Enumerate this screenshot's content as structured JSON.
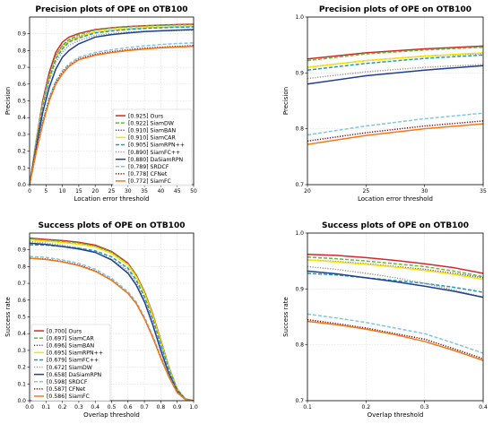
{
  "chart_data": [
    {
      "id": "precision-full",
      "type": "line",
      "title": "Precision plots of OPE on OTB100",
      "xlabel": "Location error threshold",
      "ylabel": "Precision",
      "xlim": [
        0,
        50
      ],
      "ylim": [
        0,
        1.0
      ],
      "xticks": [
        0,
        5,
        10,
        15,
        20,
        25,
        30,
        35,
        40,
        45,
        50
      ],
      "yticks": [
        0.0,
        0.1,
        0.2,
        0.3,
        0.4,
        0.5,
        0.6,
        0.7,
        0.8,
        0.9
      ],
      "ytick_labels": [
        "0.0",
        "0.1",
        "0.2",
        "0.3",
        "0.4",
        "0.5",
        "0.6",
        "0.7",
        "0.8",
        "0.9"
      ],
      "grid": true,
      "legend_position": "lower-right",
      "x": [
        0,
        2,
        4,
        6,
        8,
        10,
        12,
        15,
        20,
        25,
        30,
        35,
        40,
        45,
        50
      ],
      "series": [
        {
          "name": "[0.925] Ours",
          "color": "#d62728",
          "dash": "solid",
          "values": [
            0.0,
            0.26,
            0.5,
            0.67,
            0.79,
            0.85,
            0.88,
            0.902,
            0.925,
            0.936,
            0.943,
            0.948,
            0.952,
            0.955,
            0.957
          ]
        },
        {
          "name": "[0.922] SiamDW",
          "color": "#66bb33",
          "dash": "dashed",
          "values": [
            0.0,
            0.24,
            0.48,
            0.65,
            0.77,
            0.83,
            0.865,
            0.895,
            0.922,
            0.934,
            0.941,
            0.946,
            0.95,
            0.953,
            0.955
          ]
        },
        {
          "name": "[0.910] SiamBAN",
          "color": "#6a3d9a",
          "dash": "dotted",
          "values": [
            0.0,
            0.25,
            0.49,
            0.66,
            0.77,
            0.83,
            0.86,
            0.885,
            0.91,
            0.922,
            0.93,
            0.935,
            0.939,
            0.942,
            0.944
          ]
        },
        {
          "name": "[0.910] SiamCAR",
          "color": "#f2e600",
          "dash": "solid",
          "values": [
            0.0,
            0.25,
            0.48,
            0.64,
            0.76,
            0.82,
            0.855,
            0.88,
            0.91,
            0.922,
            0.93,
            0.936,
            0.94,
            0.943,
            0.945
          ]
        },
        {
          "name": "[0.905] SiamRPN++",
          "color": "#1f9bb5",
          "dash": "dashed",
          "values": [
            0.0,
            0.24,
            0.47,
            0.63,
            0.75,
            0.81,
            0.85,
            0.875,
            0.905,
            0.917,
            0.926,
            0.932,
            0.936,
            0.939,
            0.941
          ]
        },
        {
          "name": "[0.890] SiamFC++",
          "color": "#999999",
          "dash": "dotted",
          "values": [
            0.0,
            0.24,
            0.46,
            0.62,
            0.73,
            0.79,
            0.83,
            0.86,
            0.89,
            0.902,
            0.91,
            0.915,
            0.918,
            0.92,
            0.922
          ]
        },
        {
          "name": "[0.880] DaSiamRPN",
          "color": "#1f3f8f",
          "dash": "solid",
          "values": [
            0.0,
            0.22,
            0.43,
            0.58,
            0.69,
            0.76,
            0.8,
            0.84,
            0.88,
            0.895,
            0.905,
            0.913,
            0.918,
            0.922,
            0.925
          ]
        },
        {
          "name": "[0.789] SRDCF",
          "color": "#7fc6e0",
          "dash": "dashed",
          "values": [
            0.0,
            0.2,
            0.38,
            0.52,
            0.62,
            0.68,
            0.72,
            0.76,
            0.789,
            0.805,
            0.818,
            0.828,
            0.836,
            0.842,
            0.846
          ]
        },
        {
          "name": "[0.778] CFNet",
          "color": "#8b0000",
          "dash": "dotted",
          "values": [
            0.0,
            0.2,
            0.37,
            0.51,
            0.61,
            0.67,
            0.71,
            0.75,
            0.778,
            0.793,
            0.805,
            0.814,
            0.82,
            0.825,
            0.829
          ]
        },
        {
          "name": "[0.772] SiamFC",
          "color": "#f07a1a",
          "dash": "solid",
          "values": [
            0.0,
            0.19,
            0.36,
            0.5,
            0.6,
            0.66,
            0.705,
            0.745,
            0.772,
            0.788,
            0.8,
            0.809,
            0.816,
            0.821,
            0.825
          ]
        }
      ]
    },
    {
      "id": "precision-zoom",
      "type": "line",
      "title": "Precision plots of OPE on OTB100",
      "xlabel": "Location error threshold",
      "ylabel": "Precision",
      "xlim": [
        20,
        35
      ],
      "ylim": [
        0.7,
        1.0
      ],
      "xticks": [
        20,
        25,
        30,
        35
      ],
      "yticks": [
        0.7,
        0.8,
        0.9,
        1.0
      ],
      "ytick_labels": [
        "0.7",
        "0.8",
        "0.9",
        "1.0"
      ],
      "grid": true,
      "legend_position": "none",
      "x": [
        20,
        25,
        30,
        35
      ],
      "series": [
        {
          "name": "[0.925] Ours",
          "color": "#d62728",
          "dash": "solid",
          "values": [
            0.925,
            0.936,
            0.943,
            0.948
          ]
        },
        {
          "name": "[0.922] SiamDW",
          "color": "#66bb33",
          "dash": "dashed",
          "values": [
            0.922,
            0.934,
            0.941,
            0.946
          ]
        },
        {
          "name": "[0.910] SiamBAN",
          "color": "#6a3d9a",
          "dash": "dotted",
          "values": [
            0.91,
            0.922,
            0.93,
            0.935
          ]
        },
        {
          "name": "[0.910] SiamCAR",
          "color": "#f2e600",
          "dash": "solid",
          "values": [
            0.91,
            0.922,
            0.93,
            0.936
          ]
        },
        {
          "name": "[0.905] SiamRPN++",
          "color": "#1f9bb5",
          "dash": "dashed",
          "values": [
            0.905,
            0.917,
            0.926,
            0.932
          ]
        },
        {
          "name": "[0.890] SiamFC++",
          "color": "#999999",
          "dash": "dotted",
          "values": [
            0.89,
            0.902,
            0.91,
            0.915
          ]
        },
        {
          "name": "[0.880] DaSiamRPN",
          "color": "#1f3f8f",
          "dash": "solid",
          "values": [
            0.88,
            0.895,
            0.905,
            0.913
          ]
        },
        {
          "name": "[0.789] SRDCF",
          "color": "#7fc6e0",
          "dash": "dashed",
          "values": [
            0.789,
            0.805,
            0.818,
            0.828
          ]
        },
        {
          "name": "[0.778] CFNet",
          "color": "#8b0000",
          "dash": "dotted",
          "values": [
            0.778,
            0.793,
            0.805,
            0.814
          ]
        },
        {
          "name": "[0.772] SiamFC",
          "color": "#f07a1a",
          "dash": "solid",
          "values": [
            0.772,
            0.788,
            0.8,
            0.809
          ]
        }
      ]
    },
    {
      "id": "success-full",
      "type": "line",
      "title": "Success plots of OPE on OTB100",
      "xlabel": "Overlap threshold",
      "ylabel": "Success rate",
      "xlim": [
        0,
        1.0
      ],
      "ylim": [
        0,
        1.0
      ],
      "xticks": [
        0.0,
        0.1,
        0.2,
        0.3,
        0.4,
        0.5,
        0.6,
        0.7,
        0.8,
        0.9,
        1.0
      ],
      "xtick_labels": [
        "0.0",
        "0.1",
        "0.2",
        "0.3",
        "0.4",
        "0.5",
        "0.6",
        "0.7",
        "0.8",
        "0.9",
        "1.0"
      ],
      "yticks": [
        0.0,
        0.1,
        0.2,
        0.3,
        0.4,
        0.5,
        0.6,
        0.7,
        0.8,
        0.9
      ],
      "ytick_labels": [
        "0.0",
        "0.1",
        "0.2",
        "0.3",
        "0.4",
        "0.5",
        "0.6",
        "0.7",
        "0.8",
        "0.9"
      ],
      "grid": true,
      "legend_position": "lower-left",
      "x": [
        0.0,
        0.1,
        0.2,
        0.3,
        0.4,
        0.5,
        0.6,
        0.65,
        0.7,
        0.75,
        0.8,
        0.85,
        0.9,
        0.95,
        1.0
      ],
      "series": [
        {
          "name": "[0.700] Ours",
          "color": "#d62728",
          "dash": "solid",
          "values": [
            0.97,
            0.962,
            0.955,
            0.945,
            0.928,
            0.89,
            0.82,
            0.75,
            0.65,
            0.52,
            0.36,
            0.2,
            0.07,
            0.01,
            0.0
          ]
        },
        {
          "name": "[0.697] SiamCAR",
          "color": "#66bb33",
          "dash": "dashed",
          "values": [
            0.965,
            0.957,
            0.95,
            0.94,
            0.922,
            0.885,
            0.815,
            0.745,
            0.645,
            0.515,
            0.355,
            0.2,
            0.07,
            0.01,
            0.0
          ]
        },
        {
          "name": "[0.696] SiamBAN",
          "color": "#6a3d9a",
          "dash": "dotted",
          "values": [
            0.96,
            0.952,
            0.945,
            0.935,
            0.92,
            0.88,
            0.81,
            0.74,
            0.64,
            0.51,
            0.35,
            0.195,
            0.068,
            0.01,
            0.0
          ]
        },
        {
          "name": "[0.695] SiamRPN++",
          "color": "#f2e600",
          "dash": "solid",
          "values": [
            0.96,
            0.952,
            0.944,
            0.933,
            0.917,
            0.878,
            0.81,
            0.74,
            0.64,
            0.51,
            0.35,
            0.195,
            0.068,
            0.01,
            0.0
          ]
        },
        {
          "name": "[0.679] SiamFC++",
          "color": "#1f9bb5",
          "dash": "dashed",
          "values": [
            0.93,
            0.928,
            0.92,
            0.91,
            0.894,
            0.858,
            0.79,
            0.72,
            0.62,
            0.49,
            0.335,
            0.185,
            0.065,
            0.01,
            0.0
          ]
        },
        {
          "name": "[0.672] SiamDW",
          "color": "#999999",
          "dash": "dotted",
          "values": [
            0.95,
            0.94,
            0.928,
            0.91,
            0.885,
            0.845,
            0.775,
            0.705,
            0.605,
            0.475,
            0.32,
            0.175,
            0.06,
            0.008,
            0.0
          ]
        },
        {
          "name": "[0.658] DaSiamRPN",
          "color": "#1f3f8f",
          "dash": "solid",
          "values": [
            0.94,
            0.932,
            0.92,
            0.905,
            0.885,
            0.84,
            0.76,
            0.69,
            0.59,
            0.455,
            0.3,
            0.16,
            0.055,
            0.008,
            0.0
          ]
        },
        {
          "name": "[0.598] SRDCF",
          "color": "#7fc6e0",
          "dash": "dashed",
          "values": [
            0.86,
            0.855,
            0.84,
            0.82,
            0.785,
            0.73,
            0.65,
            0.59,
            0.5,
            0.39,
            0.265,
            0.145,
            0.05,
            0.008,
            0.0
          ]
        },
        {
          "name": "[0.587] CFNet",
          "color": "#8b0000",
          "dash": "dotted",
          "values": [
            0.85,
            0.845,
            0.83,
            0.81,
            0.775,
            0.72,
            0.64,
            0.58,
            0.49,
            0.38,
            0.255,
            0.14,
            0.048,
            0.008,
            0.0
          ]
        },
        {
          "name": "[0.586] SiamFC",
          "color": "#f07a1a",
          "dash": "solid",
          "values": [
            0.85,
            0.842,
            0.828,
            0.806,
            0.772,
            0.718,
            0.64,
            0.58,
            0.49,
            0.38,
            0.255,
            0.14,
            0.048,
            0.008,
            0.0
          ]
        }
      ]
    },
    {
      "id": "success-zoom",
      "type": "line",
      "title": "Success plots of OPE on OTB100",
      "xlabel": "Overlap threshold",
      "ylabel": "Success rate",
      "xlim": [
        0.1,
        0.4
      ],
      "ylim": [
        0.7,
        1.0
      ],
      "xticks": [
        0.1,
        0.2,
        0.3,
        0.4
      ],
      "xtick_labels": [
        "0.1",
        "0.2",
        "0.3",
        "0.4"
      ],
      "yticks": [
        0.7,
        0.8,
        0.9,
        1.0
      ],
      "ytick_labels": [
        "0.7",
        "0.8",
        "0.9",
        "1.0"
      ],
      "grid": true,
      "legend_position": "none",
      "x": [
        0.1,
        0.15,
        0.2,
        0.25,
        0.3,
        0.35,
        0.4
      ],
      "series": [
        {
          "name": "[0.700] Ours",
          "color": "#d62728",
          "dash": "solid",
          "values": [
            0.962,
            0.96,
            0.956,
            0.951,
            0.945,
            0.938,
            0.928
          ]
        },
        {
          "name": "[0.697] SiamCAR",
          "color": "#66bb33",
          "dash": "dashed",
          "values": [
            0.957,
            0.954,
            0.95,
            0.945,
            0.94,
            0.932,
            0.922
          ]
        },
        {
          "name": "[0.696] SiamBAN",
          "color": "#6a3d9a",
          "dash": "dotted",
          "values": [
            0.952,
            0.949,
            0.945,
            0.94,
            0.935,
            0.928,
            0.92
          ]
        },
        {
          "name": "[0.695] SiamRPN++",
          "color": "#f2e600",
          "dash": "solid",
          "values": [
            0.952,
            0.948,
            0.944,
            0.939,
            0.933,
            0.926,
            0.917
          ]
        },
        {
          "name": "[0.679] SiamFC++",
          "color": "#1f9bb5",
          "dash": "dashed",
          "values": [
            0.928,
            0.925,
            0.92,
            0.915,
            0.91,
            0.903,
            0.894
          ]
        },
        {
          "name": "[0.672] SiamDW",
          "color": "#999999",
          "dash": "dotted",
          "values": [
            0.94,
            0.935,
            0.928,
            0.92,
            0.91,
            0.898,
            0.885
          ]
        },
        {
          "name": "[0.658] DaSiamRPN",
          "color": "#1f3f8f",
          "dash": "solid",
          "values": [
            0.932,
            0.927,
            0.92,
            0.913,
            0.905,
            0.896,
            0.885
          ]
        },
        {
          "name": "[0.598] SRDCF",
          "color": "#7fc6e0",
          "dash": "dashed",
          "values": [
            0.855,
            0.848,
            0.84,
            0.83,
            0.82,
            0.803,
            0.785
          ]
        },
        {
          "name": "[0.587] CFNet",
          "color": "#8b0000",
          "dash": "dotted",
          "values": [
            0.845,
            0.838,
            0.83,
            0.82,
            0.81,
            0.793,
            0.775
          ]
        },
        {
          "name": "[0.586] SiamFC",
          "color": "#f07a1a",
          "dash": "solid",
          "values": [
            0.842,
            0.836,
            0.828,
            0.818,
            0.806,
            0.79,
            0.772
          ]
        }
      ]
    }
  ]
}
